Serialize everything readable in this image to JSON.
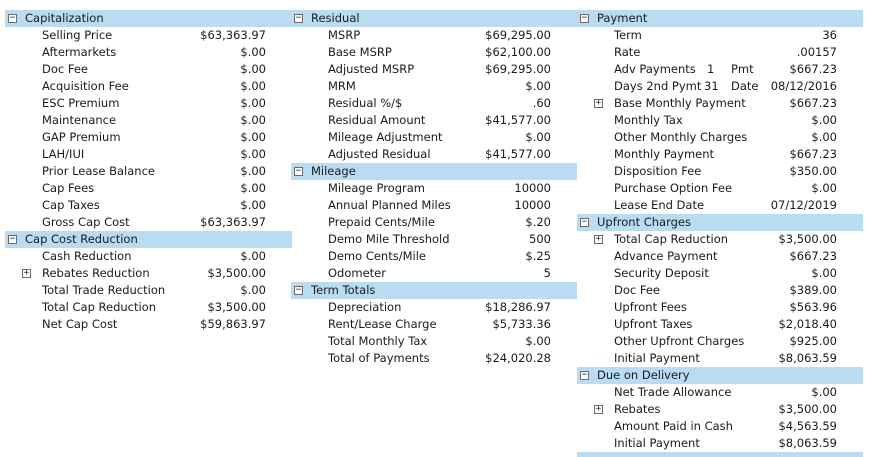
{
  "capitalization": {
    "title": "Capitalization",
    "rows": [
      {
        "label": "Selling Price",
        "value": "$63,363.97"
      },
      {
        "label": "Aftermarkets",
        "value": "$.00"
      },
      {
        "label": "Doc Fee",
        "value": "$.00"
      },
      {
        "label": "Acquisition Fee",
        "value": "$.00"
      },
      {
        "label": "ESC Premium",
        "value": "$.00"
      },
      {
        "label": "Maintenance",
        "value": "$.00"
      },
      {
        "label": "GAP Premium",
        "value": "$.00"
      },
      {
        "label": "LAH/IUI",
        "value": "$.00"
      },
      {
        "label": "Prior Lease Balance",
        "value": "$.00"
      },
      {
        "label": "Cap Fees",
        "value": "$.00"
      },
      {
        "label": "Cap Taxes",
        "value": "$.00"
      },
      {
        "label": "Gross Cap Cost",
        "value": "$63,363.97"
      }
    ]
  },
  "cap_cost_reduction": {
    "title": "Cap Cost Reduction",
    "rows": [
      {
        "label": "Cash Reduction",
        "value": "$.00"
      },
      {
        "label": "Rebates Reduction",
        "value": "$3,500.00"
      },
      {
        "label": "Total Trade Reduction",
        "value": "$.00"
      },
      {
        "label": "Total Cap Reduction",
        "value": "$3,500.00"
      },
      {
        "label": "Net Cap Cost",
        "value": "$59,863.97"
      }
    ]
  },
  "residual": {
    "title": "Residual",
    "rows": [
      {
        "label": "MSRP",
        "value": "$69,295.00"
      },
      {
        "label": "Base MSRP",
        "value": "$62,100.00"
      },
      {
        "label": "Adjusted MSRP",
        "value": "$69,295.00"
      },
      {
        "label": "MRM",
        "value": "$.00"
      },
      {
        "label": "Residual %/$",
        "value": ".60"
      },
      {
        "label": "Residual Amount",
        "value": "$41,577.00"
      },
      {
        "label": "Mileage Adjustment",
        "value": "$.00"
      },
      {
        "label": "Adjusted Residual",
        "value": "$41,577.00"
      }
    ]
  },
  "mileage": {
    "title": "Mileage",
    "rows": [
      {
        "label": "Mileage Program",
        "value": "10000"
      },
      {
        "label": "Annual Planned Miles",
        "value": "10000"
      },
      {
        "label": "Prepaid Cents/Mile",
        "value": "$.20"
      },
      {
        "label": "Demo Mile Threshold",
        "value": "500"
      },
      {
        "label": "Demo Cents/Mile",
        "value": "$.25"
      },
      {
        "label": "Odometer",
        "value": "5"
      }
    ]
  },
  "term_totals": {
    "title": "Term Totals",
    "rows": [
      {
        "label": "Depreciation",
        "value": "$18,286.97"
      },
      {
        "label": "Rent/Lease Charge",
        "value": "$5,733.36"
      },
      {
        "label": "Total Monthly Tax",
        "value": "$.00"
      },
      {
        "label": "Total of Payments",
        "value": "$24,020.28"
      }
    ]
  },
  "payment": {
    "title": "Payment",
    "rows": [
      {
        "label": "Term",
        "value": "36"
      },
      {
        "label": "Rate",
        "value": ".00157"
      },
      {
        "label": "Adv Payments",
        "value": "$667.23",
        "extra1": "1",
        "extra2": "Pmt"
      },
      {
        "label": "Days 2nd Pymt",
        "value": "08/12/2016",
        "extra1": "31",
        "extra2": "Date"
      },
      {
        "label": "Base Monthly Payment",
        "value": "$667.23"
      },
      {
        "label": "Monthly Tax",
        "value": "$.00"
      },
      {
        "label": "Other Monthly Charges",
        "value": "$.00"
      },
      {
        "label": "Monthly Payment",
        "value": "$667.23"
      },
      {
        "label": "Disposition Fee",
        "value": "$350.00"
      },
      {
        "label": "Purchase Option Fee",
        "value": "$.00"
      },
      {
        "label": "Lease End Date",
        "value": "07/12/2019"
      }
    ]
  },
  "upfront_charges": {
    "title": "Upfront Charges",
    "rows": [
      {
        "label": "Total Cap Reduction",
        "value": "$3,500.00"
      },
      {
        "label": "Advance Payment",
        "value": "$667.23"
      },
      {
        "label": "Security Deposit",
        "value": "$.00"
      },
      {
        "label": "Doc Fee",
        "value": "$389.00"
      },
      {
        "label": "Upfront Fees",
        "value": "$563.96"
      },
      {
        "label": "Upfront Taxes",
        "value": "$2,018.40"
      },
      {
        "label": "Other Upfront Charges",
        "value": "$925.00"
      },
      {
        "label": "Initial Payment",
        "value": "$8,063.59"
      }
    ]
  },
  "due_on_delivery": {
    "title": "Due on Delivery",
    "rows": [
      {
        "label": "Net Trade Allowance",
        "value": "$.00"
      },
      {
        "label": "Rebates",
        "value": "$3,500.00"
      },
      {
        "label": "Amount Paid in Cash",
        "value": "$4,563.59"
      },
      {
        "label": "Initial Payment",
        "value": "$8,063.59"
      }
    ]
  },
  "icons": {
    "collapse": "minus-box-icon",
    "expand": "plus-box-icon"
  }
}
